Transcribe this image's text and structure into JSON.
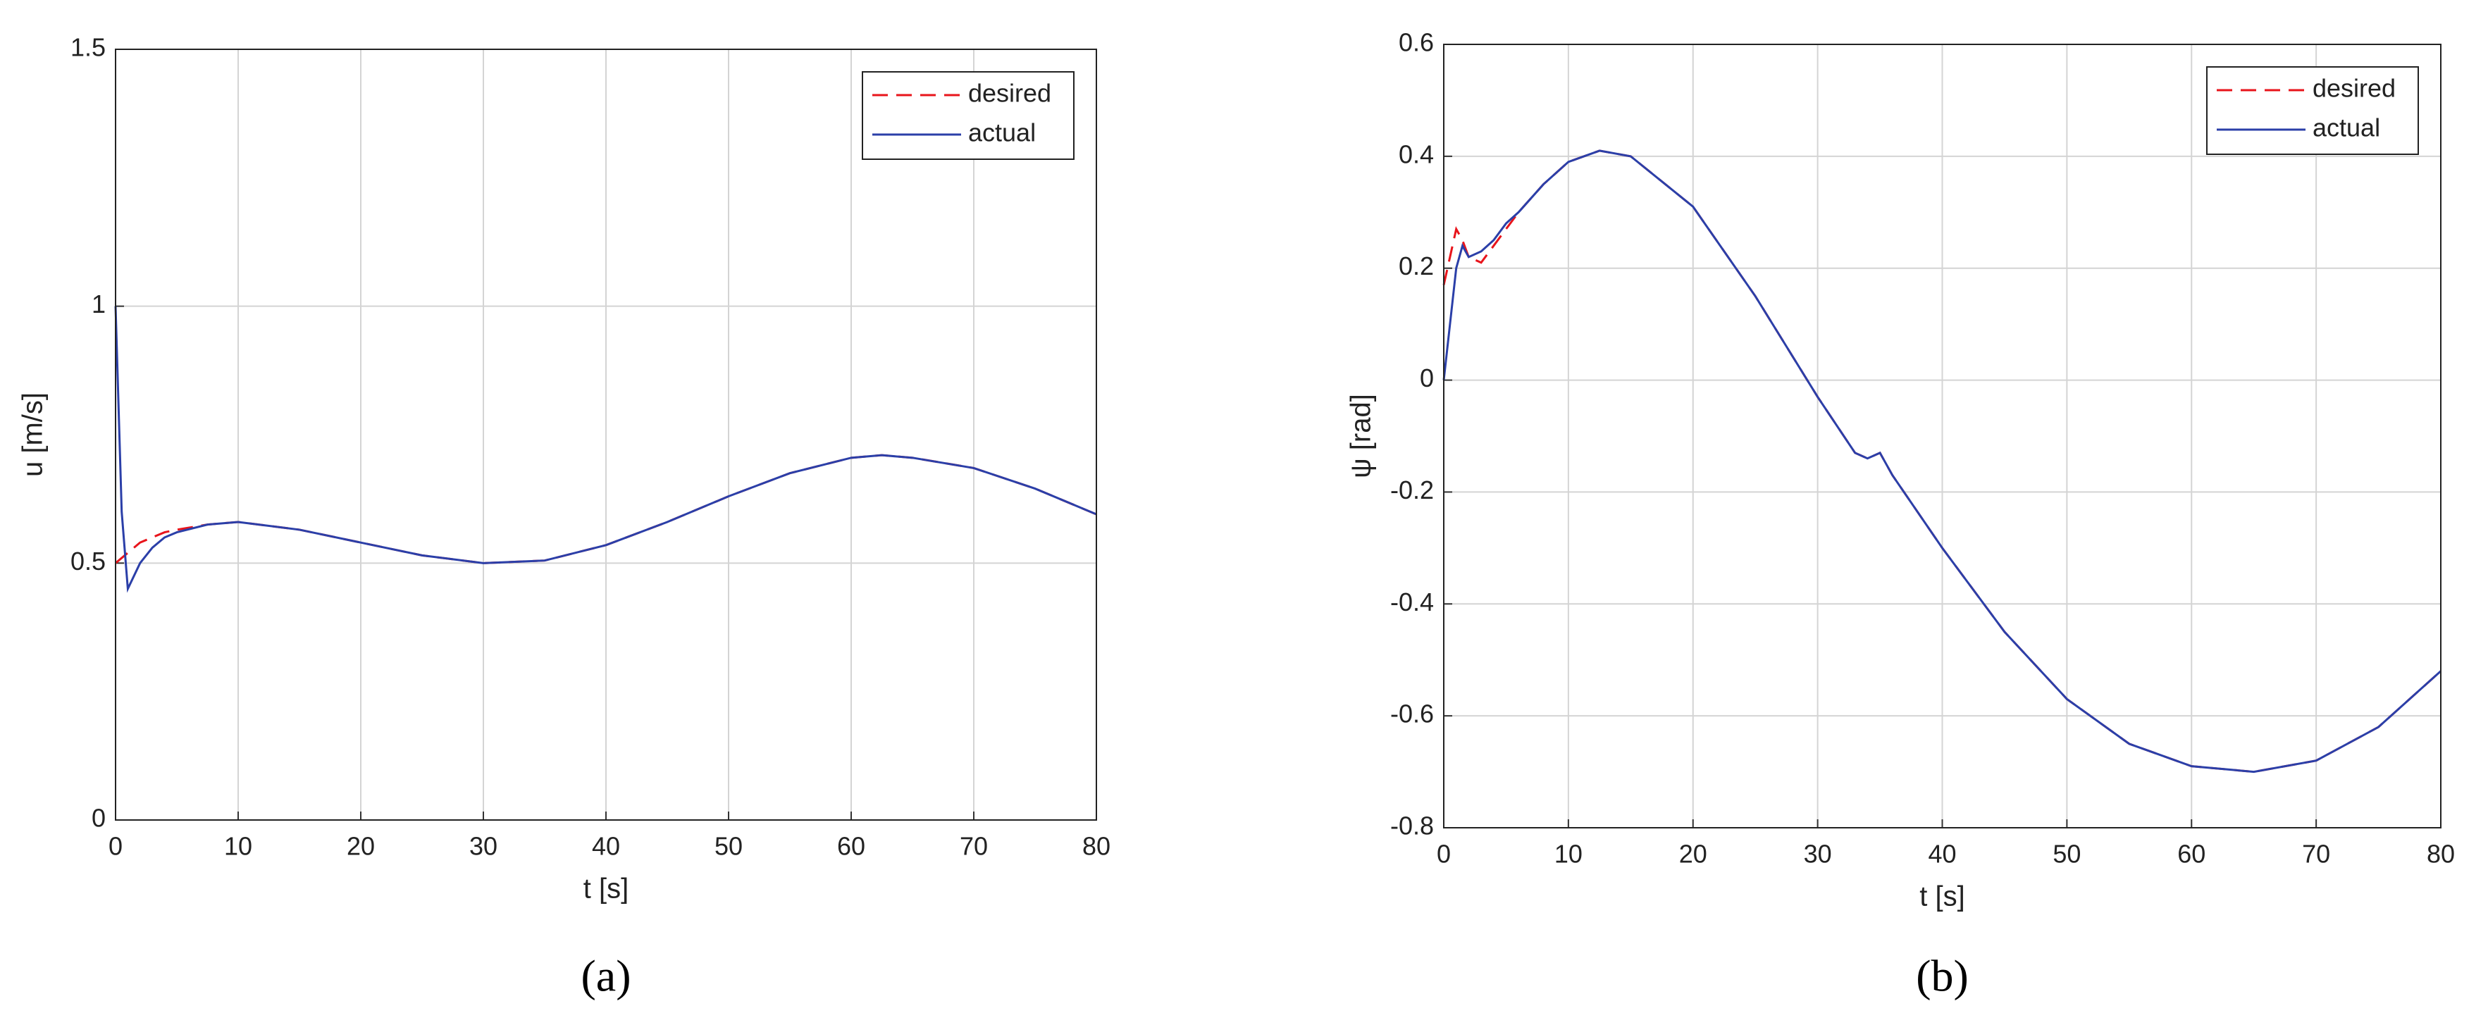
{
  "chart_data": [
    {
      "type": "line",
      "caption": "(a)",
      "xlabel": "t [s]",
      "ylabel": "u [m/s]",
      "xlim": [
        0,
        80
      ],
      "ylim": [
        0,
        1.5
      ],
      "xticks": [
        0,
        10,
        20,
        30,
        40,
        50,
        60,
        70,
        80
      ],
      "yticks": [
        0,
        0.5,
        1,
        1.5
      ],
      "grid": true,
      "legend": "upper right",
      "x": [
        0,
        0.5,
        1,
        2,
        3,
        4,
        5,
        7.5,
        10,
        15,
        20,
        25,
        30,
        35,
        40,
        45,
        50,
        55,
        60,
        62.5,
        65,
        70,
        75,
        80
      ],
      "series": [
        {
          "name": "desired",
          "color": "#e8141b",
          "linestyle": "dashed",
          "values": [
            0.5,
            0.51,
            0.52,
            0.54,
            0.55,
            0.56,
            0.565,
            0.575,
            0.58,
            0.565,
            0.54,
            0.515,
            0.5,
            0.505,
            0.535,
            0.58,
            0.63,
            0.675,
            0.705,
            0.71,
            0.705,
            0.685,
            0.645,
            0.595
          ]
        },
        {
          "name": "actual",
          "color": "#2b3fa8",
          "linestyle": "solid",
          "values": [
            1.0,
            0.6,
            0.45,
            0.5,
            0.53,
            0.55,
            0.56,
            0.575,
            0.58,
            0.565,
            0.54,
            0.515,
            0.5,
            0.505,
            0.535,
            0.58,
            0.63,
            0.675,
            0.705,
            0.71,
            0.705,
            0.685,
            0.645,
            0.595
          ]
        }
      ]
    },
    {
      "type": "line",
      "caption": "(b)",
      "xlabel": "t [s]",
      "ylabel": "ψ [rad]",
      "xlim": [
        0,
        80
      ],
      "ylim": [
        -0.8,
        0.6
      ],
      "xticks": [
        0,
        10,
        20,
        30,
        40,
        50,
        60,
        70,
        80
      ],
      "yticks": [
        -0.8,
        -0.6,
        -0.4,
        -0.2,
        0,
        0.2,
        0.4,
        0.6
      ],
      "grid": true,
      "legend": "upper right",
      "x": [
        0,
        0.5,
        1,
        1.5,
        2,
        3,
        4,
        5,
        6,
        8,
        10,
        12.5,
        15,
        20,
        25,
        30,
        33,
        34,
        35,
        36,
        40,
        45,
        50,
        55,
        60,
        65,
        70,
        75,
        80
      ],
      "series": [
        {
          "name": "desired",
          "color": "#e8141b",
          "linestyle": "dashed",
          "values": [
            0.17,
            0.22,
            0.27,
            0.25,
            0.22,
            0.21,
            0.24,
            0.27,
            0.3,
            0.35,
            0.39,
            0.41,
            0.4,
            0.31,
            0.15,
            -0.03,
            -0.13,
            -0.14,
            -0.13,
            -0.17,
            -0.3,
            -0.45,
            -0.57,
            -0.65,
            -0.69,
            -0.7,
            -0.68,
            -0.62,
            -0.52
          ]
        },
        {
          "name": "actual",
          "color": "#2b3fa8",
          "linestyle": "solid",
          "values": [
            0,
            0.1,
            0.2,
            0.24,
            0.22,
            0.23,
            0.25,
            0.28,
            0.3,
            0.35,
            0.39,
            0.41,
            0.4,
            0.31,
            0.15,
            -0.03,
            -0.13,
            -0.14,
            -0.13,
            -0.17,
            -0.3,
            -0.45,
            -0.57,
            -0.65,
            -0.69,
            -0.7,
            -0.68,
            -0.62,
            -0.52
          ]
        }
      ]
    }
  ]
}
